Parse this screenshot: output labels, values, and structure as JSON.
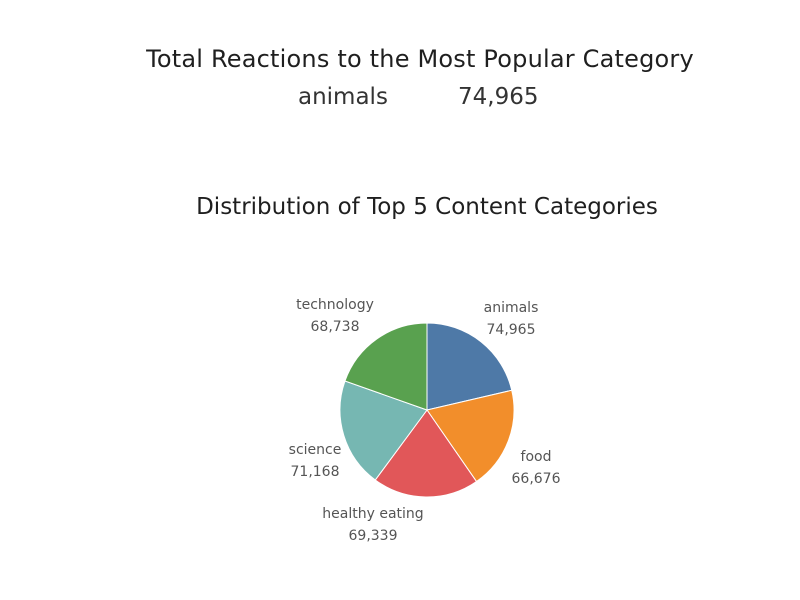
{
  "kpi": {
    "title": "Total Reactions to the Most Popular Category",
    "category": "animals",
    "value": "74,965"
  },
  "chart_data": {
    "type": "pie",
    "title": "Distribution of Top 5 Content Categories",
    "slices": [
      {
        "label": "animals",
        "value": 74965,
        "value_label": "74,965",
        "color": "#4e79a7"
      },
      {
        "label": "food",
        "value": 66676,
        "value_label": "66,676",
        "color": "#f28e2b"
      },
      {
        "label": "healthy eating",
        "value": 69339,
        "value_label": "69,339",
        "color": "#e15759"
      },
      {
        "label": "science",
        "value": 71168,
        "value_label": "71,168",
        "color": "#76b7b2"
      },
      {
        "label": "technology",
        "value": 68738,
        "value_label": "68,738",
        "color": "#59a14f"
      }
    ]
  }
}
